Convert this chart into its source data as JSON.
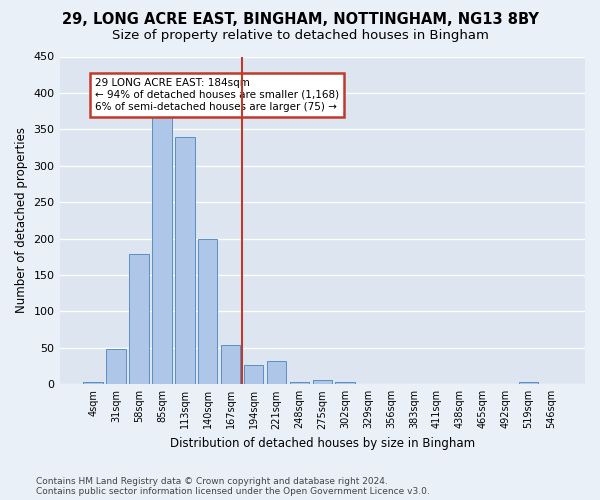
{
  "title1": "29, LONG ACRE EAST, BINGHAM, NOTTINGHAM, NG13 8BY",
  "title2": "Size of property relative to detached houses in Bingham",
  "xlabel": "Distribution of detached houses by size in Bingham",
  "ylabel": "Number of detached properties",
  "footer": "Contains HM Land Registry data © Crown copyright and database right 2024.\nContains public sector information licensed under the Open Government Licence v3.0.",
  "bin_labels": [
    "4sqm",
    "31sqm",
    "58sqm",
    "85sqm",
    "113sqm",
    "140sqm",
    "167sqm",
    "194sqm",
    "221sqm",
    "248sqm",
    "275sqm",
    "302sqm",
    "329sqm",
    "356sqm",
    "383sqm",
    "411sqm",
    "438sqm",
    "465sqm",
    "492sqm",
    "519sqm",
    "546sqm"
  ],
  "bar_values": [
    3,
    49,
    179,
    368,
    339,
    199,
    54,
    26,
    32,
    3,
    6,
    3,
    0,
    0,
    0,
    0,
    0,
    0,
    0,
    3,
    0
  ],
  "bar_color": "#aec6e8",
  "bar_edge_color": "#5a8fc2",
  "vline_color": "#c0392b",
  "annotation_title": "29 LONG ACRE EAST: 184sqm",
  "annotation_line1": "← 94% of detached houses are smaller (1,168)",
  "annotation_line2": "6% of semi-detached houses are larger (75) →",
  "annotation_box_edgecolor": "#c0392b",
  "ylim": [
    0,
    450
  ],
  "yticks": [
    0,
    50,
    100,
    150,
    200,
    250,
    300,
    350,
    400,
    450
  ],
  "background_color": "#dde6f0",
  "grid_color": "#ffffff",
  "fig_bg_color": "#eaf0f8",
  "title1_fontsize": 10.5,
  "title2_fontsize": 9.5,
  "xlabel_fontsize": 8.5,
  "ylabel_fontsize": 8.5,
  "footer_fontsize": 6.5,
  "tick_fontsize": 7,
  "ytick_fontsize": 8
}
